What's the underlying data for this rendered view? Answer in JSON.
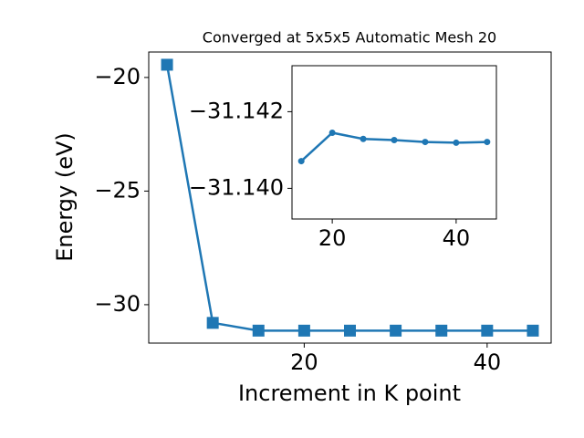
{
  "chart_data": [
    {
      "type": "line",
      "title": "Converged at 5x5x5 Automatic Mesh 20",
      "xlabel": "Increment in K point",
      "ylabel": "Energy (eV)",
      "x": [
        5,
        10,
        15,
        20,
        25,
        30,
        35,
        40,
        45
      ],
      "values": [
        -19.44,
        -30.8,
        -31.1407,
        -31.1415,
        -31.1413,
        -31.1413,
        -31.1412,
        -31.1412,
        -31.1412
      ],
      "color": "#1f77b4",
      "marker": "square",
      "xlim": [
        3,
        47
      ],
      "ylim": [
        -31.69,
        -18.88
      ],
      "xticks": [
        20,
        40
      ],
      "yticks": [
        {
          "value": -30,
          "label": "−30"
        },
        {
          "value": -25,
          "label": "−25"
        },
        {
          "value": -20,
          "label": "−20"
        }
      ]
    },
    {
      "type": "line",
      "x": [
        15,
        20,
        25,
        30,
        35,
        40,
        45
      ],
      "values": [
        -31.14071,
        -31.14145,
        -31.14129,
        -31.14126,
        -31.14121,
        -31.14119,
        -31.14121
      ],
      "color": "#1f77b4",
      "marker": "circle",
      "xlim": [
        13.5,
        46.5
      ],
      "ylim": [
        -31.1392,
        -31.1432
      ],
      "xticks": [
        20,
        40
      ],
      "yticks": [
        {
          "value": -31.142,
          "label": "−31.142"
        },
        {
          "value": -31.14,
          "label": "−31.140"
        }
      ]
    }
  ]
}
